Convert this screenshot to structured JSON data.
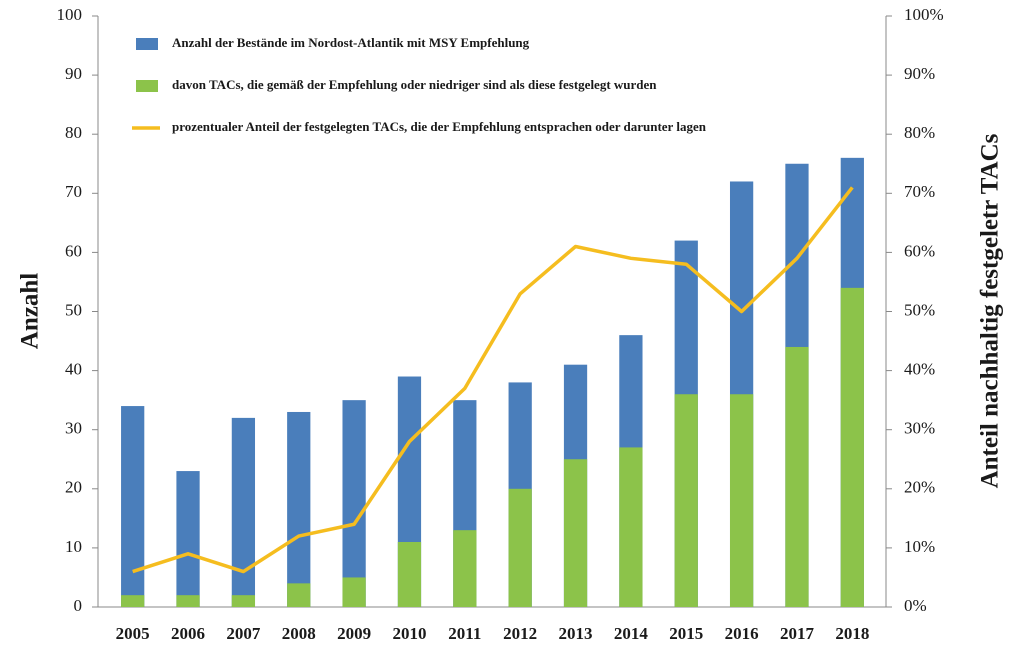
{
  "chart_data": {
    "type": "bar",
    "categories": [
      "2005",
      "2006",
      "2007",
      "2008",
      "2009",
      "2010",
      "2011",
      "2012",
      "2013",
      "2014",
      "2015",
      "2016",
      "2017",
      "2018"
    ],
    "series": [
      {
        "name": "Anzahl der Bestände im Nordost-Atlantik mit MSY Empfehlung",
        "color": "#4a7ebb",
        "type": "bar",
        "values": [
          34,
          23,
          32,
          33,
          35,
          39,
          35,
          38,
          41,
          46,
          62,
          72,
          75,
          76
        ]
      },
      {
        "name": "davon TACs, die gemäß der Empfehlung oder niedriger sind als diese festgelegt wurden",
        "color": "#8cc34a",
        "type": "bar",
        "values": [
          2,
          2,
          2,
          4,
          5,
          11,
          13,
          20,
          25,
          27,
          36,
          36,
          44,
          54
        ]
      },
      {
        "name": "prozentualer Anteil der festgelegten TACs, die der Empfehlung entsprachen oder darunter lagen",
        "color": "#f5bd1f",
        "type": "line",
        "axis": "y2",
        "values": [
          6,
          9,
          6,
          12,
          14,
          28,
          37,
          53,
          61,
          59,
          58,
          50,
          59,
          71
        ]
      }
    ],
    "y_label": "Anzahl",
    "y2_label": "Anteil nachhaltig festgeletr  TACs",
    "ylim": [
      0,
      100
    ],
    "yticks": [
      0,
      10,
      20,
      30,
      40,
      50,
      60,
      70,
      80,
      90,
      100
    ],
    "y2lim": [
      0,
      100
    ],
    "y2ticks": [
      {
        "value": 0,
        "label": "0%"
      },
      {
        "value": 10,
        "label": "10%"
      },
      {
        "value": 20,
        "label": "20%"
      },
      {
        "value": 30,
        "label": "30%"
      },
      {
        "value": 40,
        "label": "40%"
      },
      {
        "value": 50,
        "label": "50%"
      },
      {
        "value": 60,
        "label": "60%"
      },
      {
        "value": 70,
        "label": "70%"
      },
      {
        "value": 80,
        "label": "80%"
      },
      {
        "value": 90,
        "label": "90%"
      },
      {
        "value": 100,
        "label": "100%"
      }
    ],
    "legend": "upper left"
  }
}
